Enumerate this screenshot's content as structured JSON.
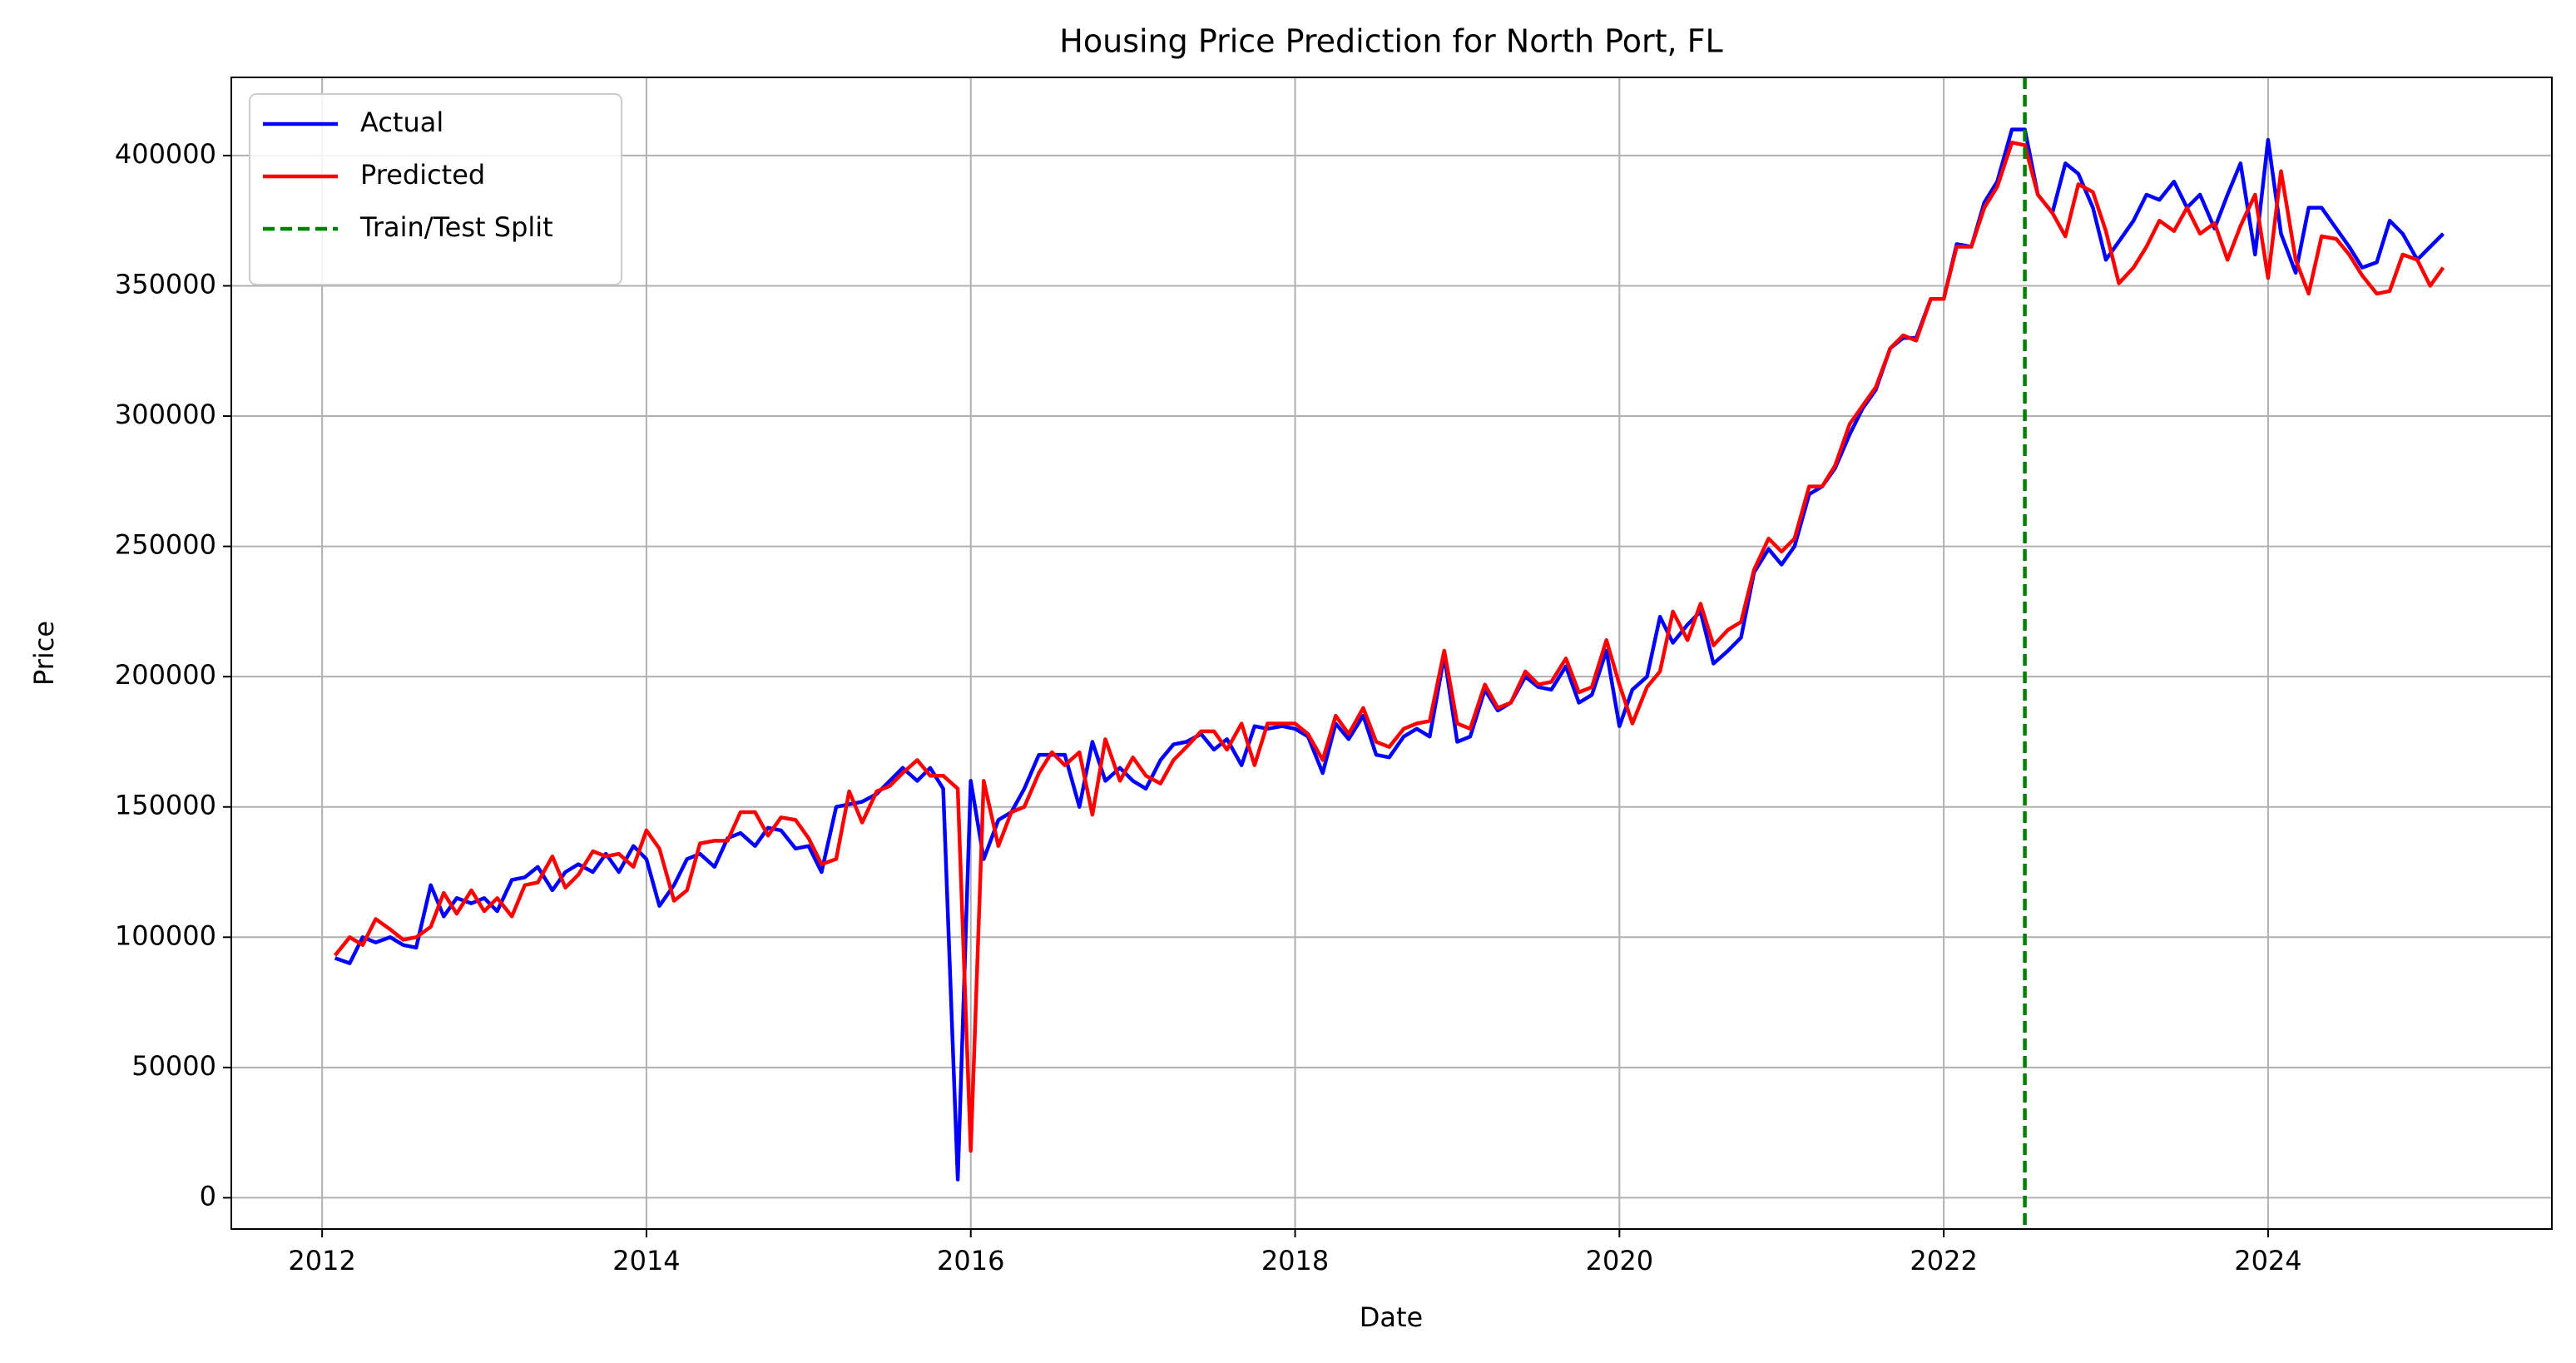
{
  "chart_data": {
    "type": "line",
    "title": "Housing Price Prediction for North Port, FL",
    "x_label": "Date",
    "y_label": "Price",
    "x": [
      2012.08,
      2012.17,
      2012.25,
      2012.33,
      2012.42,
      2012.5,
      2012.58,
      2012.67,
      2012.75,
      2012.83,
      2012.92,
      2013,
      2013.08,
      2013.17,
      2013.25,
      2013.33,
      2013.42,
      2013.5,
      2013.58,
      2013.67,
      2013.75,
      2013.83,
      2013.92,
      2014,
      2014.08,
      2014.17,
      2014.25,
      2014.33,
      2014.42,
      2014.5,
      2014.58,
      2014.67,
      2014.75,
      2014.83,
      2014.92,
      2015,
      2015.08,
      2015.17,
      2015.25,
      2015.33,
      2015.42,
      2015.5,
      2015.58,
      2015.67,
      2015.75,
      2015.83,
      2015.92,
      2016,
      2016.08,
      2016.17,
      2016.25,
      2016.33,
      2016.42,
      2016.5,
      2016.58,
      2016.67,
      2016.75,
      2016.83,
      2016.92,
      2017,
      2017.08,
      2017.17,
      2017.25,
      2017.33,
      2017.42,
      2017.5,
      2017.58,
      2017.67,
      2017.75,
      2017.83,
      2017.92,
      2018,
      2018.08,
      2018.17,
      2018.25,
      2018.33,
      2018.42,
      2018.5,
      2018.58,
      2018.67,
      2018.75,
      2018.83,
      2018.92,
      2019,
      2019.08,
      2019.17,
      2019.25,
      2019.33,
      2019.42,
      2019.5,
      2019.58,
      2019.67,
      2019.75,
      2019.83,
      2019.92,
      2020,
      2020.08,
      2020.17,
      2020.25,
      2020.33,
      2020.42,
      2020.5,
      2020.58,
      2020.67,
      2020.75,
      2020.83,
      2020.92,
      2021,
      2021.08,
      2021.17,
      2021.25,
      2021.33,
      2021.42,
      2021.5,
      2021.58,
      2021.67,
      2021.75,
      2021.83,
      2021.92,
      2022,
      2022.08,
      2022.17,
      2022.25,
      2022.33,
      2022.42,
      2022.5,
      2022.58,
      2022.67,
      2022.75,
      2022.83,
      2022.92,
      2023,
      2023.08,
      2023.17,
      2023.25,
      2023.33,
      2023.42,
      2023.5,
      2023.58,
      2023.67,
      2023.75,
      2023.83,
      2023.92,
      2024,
      2024.08,
      2024.17,
      2024.25,
      2024.33,
      2024.42,
      2024.5,
      2024.58,
      2024.67,
      2024.75,
      2024.83,
      2024.92,
      2025,
      2025.08
    ],
    "series": [
      {
        "name": "Actual",
        "color": "#0000ff",
        "values": [
          92000,
          90000,
          100000,
          98000,
          100000,
          97000,
          96000,
          120000,
          108000,
          115000,
          113000,
          115000,
          110000,
          122000,
          123000,
          127000,
          118000,
          125000,
          128000,
          125000,
          132000,
          125000,
          135000,
          130000,
          112000,
          120000,
          130000,
          132000,
          127000,
          138000,
          140000,
          135000,
          142000,
          141000,
          134000,
          135000,
          125000,
          150000,
          151000,
          152000,
          155000,
          160000,
          165000,
          160000,
          165000,
          157000,
          7000,
          160000,
          130000,
          145000,
          148000,
          157000,
          170000,
          170000,
          170000,
          150000,
          175000,
          160000,
          165000,
          160000,
          157000,
          168000,
          174000,
          175000,
          178000,
          172000,
          176000,
          166000,
          181000,
          180000,
          181000,
          180000,
          177000,
          163000,
          182000,
          176000,
          185000,
          170000,
          169000,
          177000,
          180000,
          177000,
          208000,
          175000,
          177000,
          195000,
          187000,
          190000,
          200000,
          196000,
          195000,
          204000,
          190000,
          193000,
          210000,
          181000,
          195000,
          200000,
          223000,
          213000,
          220000,
          225000,
          205000,
          210000,
          215000,
          240000,
          249000,
          243000,
          250000,
          270000,
          273000,
          280000,
          293000,
          303000,
          310000,
          326000,
          330000,
          330000,
          345000,
          345000,
          366000,
          365000,
          382000,
          390000,
          410000,
          410000,
          385000,
          378000,
          397000,
          393000,
          380000,
          360000,
          367000,
          375000,
          385000,
          383000,
          390000,
          380000,
          385000,
          372000,
          385000,
          397000,
          362000,
          406000,
          370000,
          355000,
          380000,
          380000,
          372000,
          365000,
          357000,
          359000,
          375000,
          370000,
          360000,
          365000,
          370000
        ]
      },
      {
        "name": "Predicted",
        "color": "#ff0000",
        "values": [
          93000,
          100000,
          97000,
          107000,
          103000,
          99000,
          100000,
          104000,
          117000,
          109000,
          118000,
          110000,
          115000,
          108000,
          120000,
          121000,
          131000,
          119000,
          124000,
          133000,
          131000,
          132000,
          127000,
          141000,
          134000,
          114000,
          118000,
          136000,
          137000,
          137000,
          148000,
          148000,
          139000,
          146000,
          145000,
          138000,
          128000,
          130000,
          156000,
          144000,
          156000,
          158000,
          163000,
          168000,
          162000,
          162000,
          157000,
          18000,
          160000,
          135000,
          148000,
          150000,
          163000,
          171000,
          166000,
          171000,
          147000,
          176000,
          160000,
          169000,
          162000,
          159000,
          168000,
          173000,
          179000,
          179000,
          172000,
          182000,
          166000,
          182000,
          182000,
          182000,
          178000,
          168000,
          185000,
          178000,
          188000,
          175000,
          173000,
          180000,
          182000,
          183000,
          210000,
          182000,
          180000,
          197000,
          188000,
          190000,
          202000,
          197000,
          198000,
          207000,
          194000,
          196000,
          214000,
          197000,
          182000,
          196000,
          202000,
          225000,
          214000,
          228000,
          212000,
          218000,
          221000,
          241000,
          253000,
          248000,
          253000,
          273000,
          273000,
          281000,
          297000,
          304000,
          311000,
          326000,
          331000,
          329000,
          345000,
          345000,
          365000,
          365000,
          380000,
          388000,
          405000,
          404000,
          385000,
          378000,
          369000,
          389000,
          386000,
          371000,
          351000,
          357000,
          365000,
          375000,
          371000,
          380000,
          370000,
          374000,
          360000,
          373000,
          385000,
          353000,
          394000,
          360000,
          347000,
          369000,
          368000,
          362000,
          354000,
          347000,
          348000,
          362000,
          360000,
          350000,
          357000
        ]
      }
    ],
    "split": {
      "name": "Train/Test Split",
      "color": "#008000",
      "x": 2022.5
    },
    "xlim": [
      2011.44,
      2025.75
    ],
    "xticks": [
      2012,
      2014,
      2016,
      2018,
      2020,
      2022,
      2024
    ],
    "ylim": [
      -12000,
      430000
    ],
    "yticks": [
      0,
      50000,
      100000,
      150000,
      200000,
      250000,
      300000,
      350000,
      400000
    ],
    "grid": true,
    "legend": "upper left"
  }
}
